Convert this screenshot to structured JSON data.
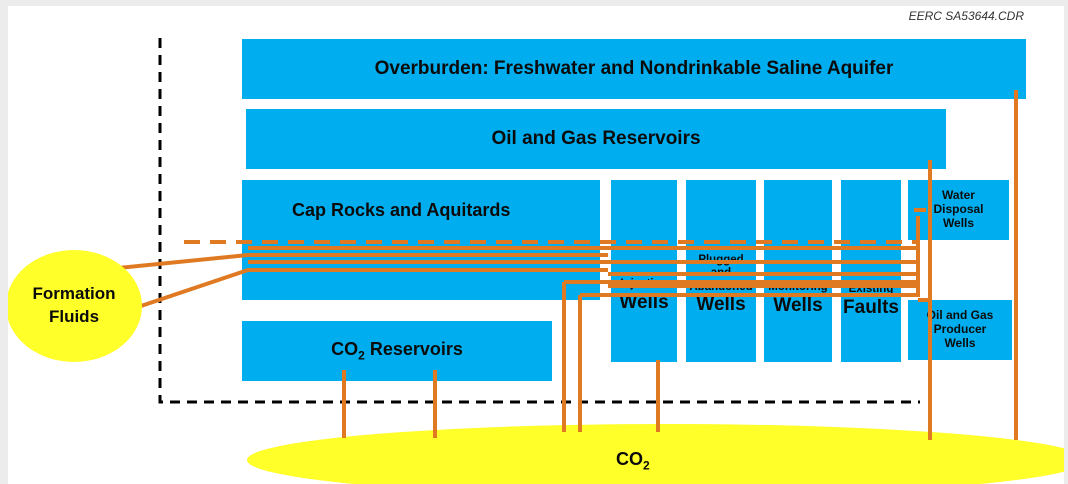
{
  "credit": "EERC SA53644.CDR",
  "boxes": {
    "overburden": "Overburden: Freshwater and Nondrinkable Saline Aquifer",
    "oil_gas_reservoirs": "Oil and Gas Reservoirs",
    "cap_rocks": "Cap Rocks and Aquitards",
    "co2_reservoirs_prefix": "CO",
    "co2_reservoirs_sub": "2",
    "co2_reservoirs_suffix": " Reservoirs",
    "injection_small": "Injection",
    "injection_big": "Wells",
    "plugged_line1": "Plugged",
    "plugged_line2": "and",
    "plugged_line3": "Abandoned",
    "plugged_big": "Wells",
    "monitoring_small": "Monitoring",
    "monitoring_big": "Wells",
    "existing_small": "Existing",
    "existing_big": "Faults",
    "water_disposal_line1": "Water",
    "water_disposal_line2": "Disposal",
    "water_disposal_line3": "Wells",
    "ogp_line1": "Oil and Gas",
    "ogp_line2": "Producer",
    "ogp_line3": "Wells"
  },
  "formation": {
    "line1": "Formation",
    "line2": "Fluids"
  },
  "co2_pool": {
    "prefix": "CO",
    "sub": "2"
  },
  "colors": {
    "box": "#00aeef",
    "pathway": "#e07a22",
    "source": "#ffff2a",
    "boundary": "#000000"
  }
}
